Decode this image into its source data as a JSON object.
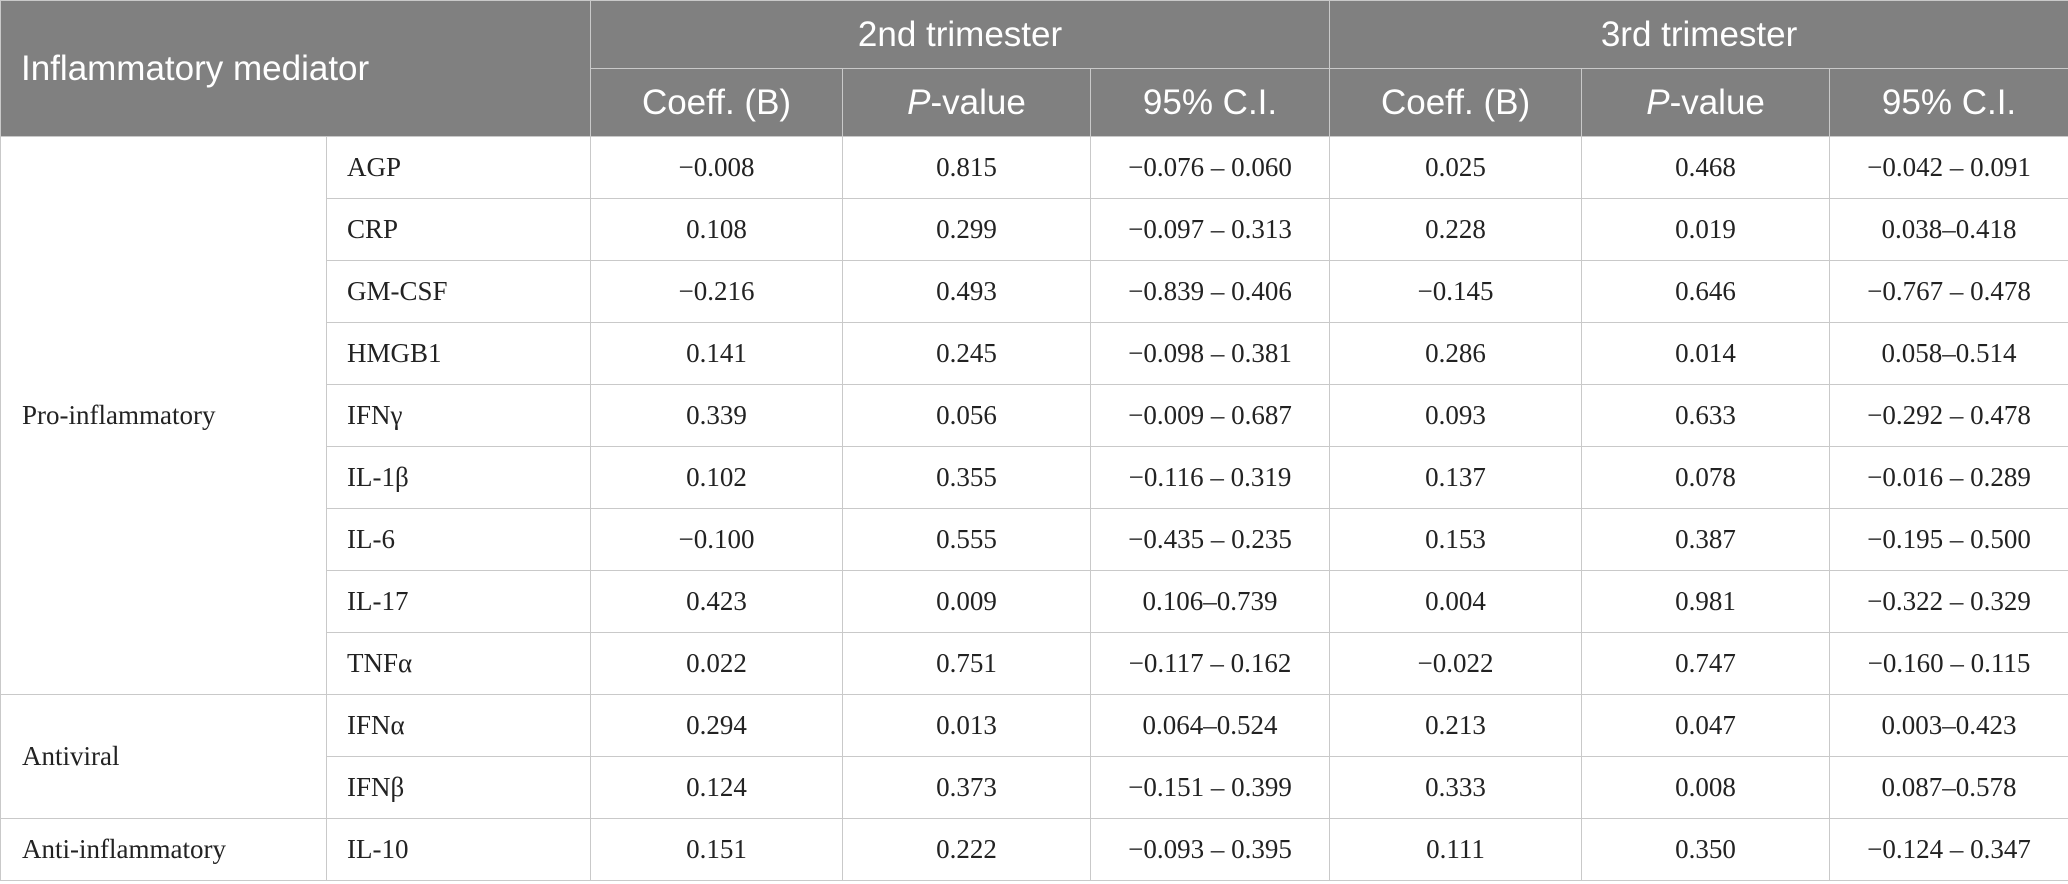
{
  "header": {
    "mediator_col": "Inflammatory mediator",
    "trimesters": [
      "2nd trimester",
      "3rd trimester"
    ],
    "sub_cols": {
      "coeff": "Coeff. (B)",
      "p_italic": "P",
      "p_rest": "-value",
      "ci": "95% C.I."
    }
  },
  "groups": [
    {
      "name": "Pro-inflammatory",
      "rows": [
        {
          "mediator": "AGP",
          "t2": [
            "−0.008",
            "0.815",
            "−0.076 – 0.060"
          ],
          "t3": [
            "0.025",
            "0.468",
            "−0.042 – 0.091"
          ]
        },
        {
          "mediator": "CRP",
          "t2": [
            "0.108",
            "0.299",
            "−0.097 – 0.313"
          ],
          "t3": [
            "0.228",
            "0.019",
            "0.038–0.418"
          ]
        },
        {
          "mediator": "GM-CSF",
          "t2": [
            "−0.216",
            "0.493",
            "−0.839 – 0.406"
          ],
          "t3": [
            "−0.145",
            "0.646",
            "−0.767 – 0.478"
          ]
        },
        {
          "mediator": "HMGB1",
          "t2": [
            "0.141",
            "0.245",
            "−0.098 – 0.381"
          ],
          "t3": [
            "0.286",
            "0.014",
            "0.058–0.514"
          ]
        },
        {
          "mediator": "IFNγ",
          "t2": [
            "0.339",
            "0.056",
            "−0.009 – 0.687"
          ],
          "t3": [
            "0.093",
            "0.633",
            "−0.292 – 0.478"
          ]
        },
        {
          "mediator": "IL-1β",
          "t2": [
            "0.102",
            "0.355",
            "−0.116 – 0.319"
          ],
          "t3": [
            "0.137",
            "0.078",
            "−0.016 – 0.289"
          ]
        },
        {
          "mediator": "IL-6",
          "t2": [
            "−0.100",
            "0.555",
            "−0.435 – 0.235"
          ],
          "t3": [
            "0.153",
            "0.387",
            "−0.195 – 0.500"
          ]
        },
        {
          "mediator": "IL-17",
          "t2": [
            "0.423",
            "0.009",
            "0.106–0.739"
          ],
          "t3": [
            "0.004",
            "0.981",
            "−0.322 – 0.329"
          ]
        },
        {
          "mediator": "TNFα",
          "t2": [
            "0.022",
            "0.751",
            "−0.117 – 0.162"
          ],
          "t3": [
            "−0.022",
            "0.747",
            "−0.160 – 0.115"
          ]
        }
      ]
    },
    {
      "name": "Antiviral",
      "rows": [
        {
          "mediator": "IFNα",
          "t2": [
            "0.294",
            "0.013",
            "0.064–0.524"
          ],
          "t3": [
            "0.213",
            "0.047",
            "0.003–0.423"
          ]
        },
        {
          "mediator": "IFNβ",
          "t2": [
            "0.124",
            "0.373",
            "−0.151 – 0.399"
          ],
          "t3": [
            "0.333",
            "0.008",
            "0.087–0.578"
          ]
        }
      ]
    },
    {
      "name": "Anti-inflammatory",
      "rows": [
        {
          "mediator": "IL-10",
          "t2": [
            "0.151",
            "0.222",
            "−0.093 – 0.395"
          ],
          "t3": [
            "0.111",
            "0.350",
            "−0.124 – 0.347"
          ]
        }
      ]
    }
  ]
}
